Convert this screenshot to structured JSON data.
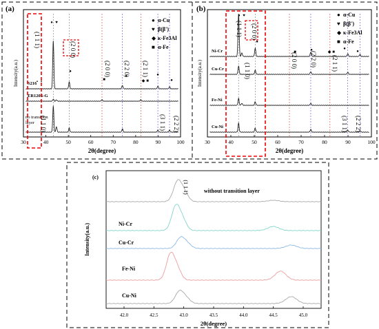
{
  "chart_data": [
    {
      "type": "line",
      "panel": "(a)",
      "xlabel": "2θ(degree)",
      "ylabel": "Intensity(a.u.)",
      "xlim": [
        30,
        100
      ],
      "x_ticks": [
        "30",
        "40",
        "50",
        "60",
        "70",
        "80",
        "90",
        "100"
      ],
      "legend": [
        {
          "symbol": "●",
          "label": "α-Cu"
        },
        {
          "symbol": "♥",
          "label": "β(β')"
        },
        {
          "symbol": "◆",
          "label": "κ-Fe3Al"
        },
        {
          "symbol": "■",
          "label": "α-Fe"
        }
      ],
      "series": [
        {
          "name": "S216",
          "peaks_2theta": [
            43.3,
            50.4,
            74.1,
            89.9,
            95.1
          ],
          "color": "#222222"
        },
        {
          "name": "ER120S-G",
          "peaks_2theta": [
            43.3,
            44.7,
            65.0,
            82.3
          ],
          "color": "#222222"
        },
        {
          "name": "no transition layer",
          "peaks_2theta": [
            43.3,
            44.7,
            50.4,
            74.1,
            89.9,
            95.1
          ],
          "color": "#222222"
        }
      ],
      "annotations": [
        "(1 1 1)",
        "(2 0 0)",
        "(2 0 0)",
        "(2 2 0)",
        "(2 1 1)",
        "(1 1 0)",
        "(3 1 1)",
        "(2 2 2)"
      ]
    },
    {
      "type": "line",
      "panel": "(b)",
      "xlabel": "2θ(degree)",
      "ylabel": "Intensity(a.u.)",
      "xlim": [
        30,
        100
      ],
      "x_ticks": [
        "30",
        "40",
        "50",
        "60",
        "70",
        "80",
        "90",
        "100"
      ],
      "legend": [
        {
          "symbol": "●",
          "label": "α-Cu"
        },
        {
          "symbol": "♥",
          "label": "β(β')"
        },
        {
          "symbol": "◆",
          "label": "κ-Fe3Al"
        },
        {
          "symbol": "■",
          "label": "α-Fe"
        }
      ],
      "series": [
        {
          "name": "Ni-Cr",
          "peaks_2theta": [
            43.3,
            44.7,
            50.4,
            74.1,
            89.9,
            95.1
          ],
          "color": "#222222"
        },
        {
          "name": "Cu-Cr",
          "peaks_2theta": [
            43.3,
            50.4,
            74.1,
            89.9
          ],
          "color": "#222222"
        },
        {
          "name": "Fe-Ni",
          "peaks_2theta": [
            43.3,
            44.7,
            50.4,
            74.1
          ],
          "color": "#222222"
        },
        {
          "name": "Cu-Ni",
          "peaks_2theta": [
            43.3,
            50.4,
            74.1,
            89.9,
            95.1
          ],
          "color": "#222222"
        }
      ],
      "annotations": [
        "(1 1 1)",
        "(2 0 0)",
        "(1 1 0)",
        "(2 0 0)",
        "(2 2 0)",
        "(2 1 1)",
        "(3 1 1)",
        "(2 2 2)"
      ]
    },
    {
      "type": "line",
      "panel": "(c)",
      "xlabel": "2θ(degree)",
      "ylabel": "Intensity(a.u.)",
      "xlim": [
        41.7,
        45.3
      ],
      "x_ticks": [
        "42.0",
        "42.5",
        "43.0",
        "43.5",
        "44.0",
        "44.5",
        "45.0"
      ],
      "annotation": "(1 1 1)",
      "series": [
        {
          "name": "without transition layer",
          "peak": 42.9,
          "color": "#a9a9a9"
        },
        {
          "name": "Ni-Cr",
          "peak": 42.87,
          "color": "#7fd6c9"
        },
        {
          "name": "Cu-Cr",
          "peak": 42.95,
          "color": "#88b8e4"
        },
        {
          "name": "Fe-Ni",
          "peak": 42.78,
          "color": "#ee9c9c"
        },
        {
          "name": "Cu-Ni",
          "peak": 42.93,
          "color": "#a8a8a8"
        }
      ]
    }
  ]
}
